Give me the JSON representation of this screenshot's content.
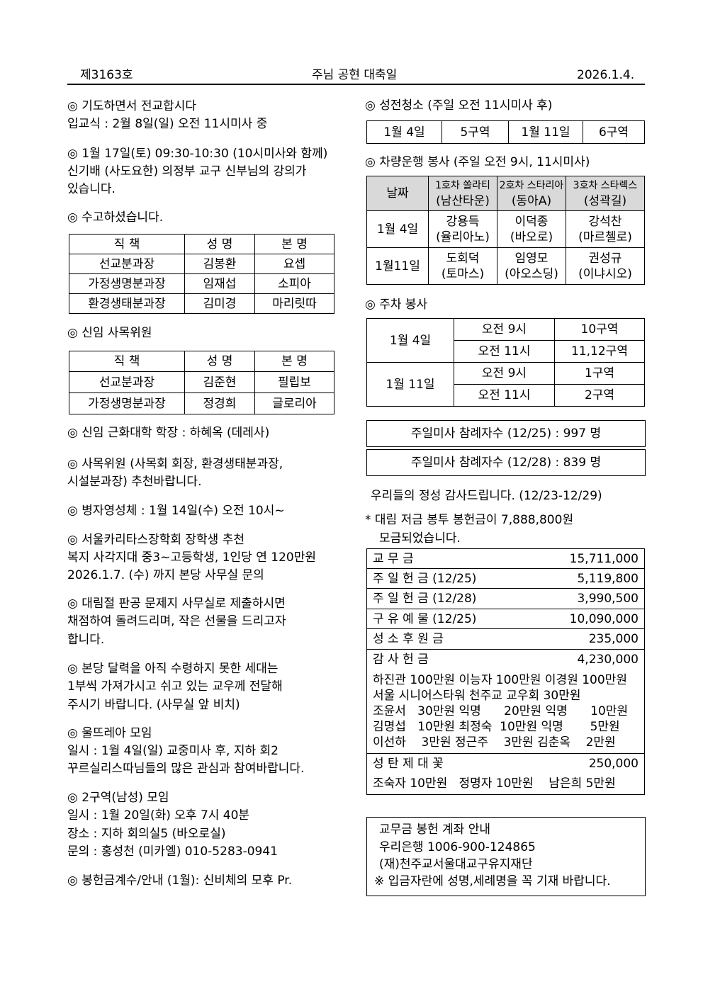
{
  "header": {
    "issue": "제3163호",
    "title": "주님 공현 대축일",
    "date": "2026.1.4."
  },
  "left": {
    "s1": {
      "title": "◎ 기도하면서 전교합시다",
      "line": "입교식 : 2월 8일(일) 오전 11시미사 중"
    },
    "s2": {
      "lines": [
        "◎ 1월 17일(토) 09:30-10:30 (10시미사와 함께)",
        "신기배 (사도요한) 의정부 교구 신부님의 강의가",
        "있습니다."
      ]
    },
    "s3": {
      "title": "◎ 수고하셨습니다.",
      "headers": [
        "직  책",
        "성  명",
        "본  명"
      ],
      "rows": [
        [
          "선교분과장",
          "김봉환",
          "요셉"
        ],
        [
          "가정생명분과장",
          "임재섭",
          "소피아"
        ],
        [
          "환경생태분과장",
          "김미경",
          "마리릿따"
        ]
      ]
    },
    "s4": {
      "title": "◎ 신임 사목위원",
      "headers": [
        "직  책",
        "성  명",
        "본  명"
      ],
      "rows": [
        [
          "선교분과장",
          "김준현",
          "필립보"
        ],
        [
          "가정생명분과장",
          "정경희",
          "글로리아"
        ]
      ]
    },
    "s5": "◎ 신임 근화대학 학장 : 하혜옥 (데레사)",
    "s6": [
      "◎ 사목위원 (사목회 회장, 환경생태분과장,",
      "시설분과장) 추천바랍니다."
    ],
    "s7": "◎ 병자영성체 : 1월 14일(수) 오전 10시~",
    "s8": [
      "◎ 서울카리타스장학회 장학생 추천",
      "복지 사각지대 중3~고등학생, 1인당 연 120만원",
      "2026.1.7. (수) 까지 본당 사무실 문의"
    ],
    "s9": [
      "◎ 대림절 판공 문제지 사무실로 제출하시면",
      "채점하여 돌려드리며, 작은 선물을 드리고자",
      "합니다."
    ],
    "s10": [
      "◎ 본당 달력을 아직 수령하지 못한 세대는",
      "1부씩 가져가시고 쉬고 있는 교우께 전달해",
      "주시기 바랍니다. (사무실 앞 비치)"
    ],
    "s11": [
      "◎ 울뜨레아 모임",
      "일시 : 1월 4일(일) 교중미사 후, 지하 회2",
      "꾸르실리스따님들의 많은 관심과 참여바랍니다."
    ],
    "s12": [
      "◎ 2구역(남성) 모임",
      "일시 : 1월 20일(화) 오후 7시 40분",
      "장소 : 지하 회의실5 (바오로실)",
      "문의 : 홍성천 (미카엘)  010-5283-0941"
    ],
    "s13": "◎ 봉헌금계수/안내 (1월): 신비체의 모후 Pr."
  },
  "right": {
    "cleaning": {
      "title": "◎ 성전청소 (주일 오전 11시미사 후)",
      "cells": [
        "1월 4일",
        "5구역",
        "1월 11일",
        "6구역"
      ]
    },
    "vehicle": {
      "title": "◎ 차량운행 봉사 (주일 오전 9시, 11시미사)",
      "date_header": "날짜",
      "cars": [
        [
          "1호차 쏠라티",
          "(남산타운)"
        ],
        [
          "2호차 스타리아",
          "(동아A)"
        ],
        [
          "3호차 스타렉스",
          "(성곽길)"
        ]
      ],
      "rows": [
        {
          "date": "1월 4일",
          "people": [
            [
              "강용득",
              "(율리아노)"
            ],
            [
              "이덕종",
              "(바오로)"
            ],
            [
              "강석찬",
              "(마르첼로)"
            ]
          ]
        },
        {
          "date": "1월11일",
          "people": [
            [
              "도회덕",
              "(토마스)"
            ],
            [
              "임영모",
              "(아오스딩)"
            ],
            [
              "권성규",
              "(이냐시오)"
            ]
          ]
        }
      ]
    },
    "parking": {
      "title": "◎ 주차 봉사",
      "rows": [
        [
          "1월 4일",
          "오전 9시",
          "10구역",
          "오전 11시",
          "11,12구역"
        ],
        [
          "1월 11일",
          "오전 9시",
          "1구역",
          "오전 11시",
          "2구역"
        ]
      ]
    },
    "attendance": [
      "주일미사 참례자수 (12/25)  :  997 명",
      "주일미사 참례자수 (12/28)  :  839 명"
    ],
    "thanks": "우리들의 정성 감사드립니다.  (12/23-12/29)",
    "advent": [
      "*  대림 저금 봉투 봉헌금이  7,888,800원",
      "모금되었습니다."
    ],
    "finance": [
      [
        "교   무   금",
        "15,711,000"
      ],
      [
        "주 일 헌 금 (12/25)",
        "5,119,800"
      ],
      [
        "주 일 헌 금 (12/28)",
        "3,990,500"
      ],
      [
        "구 유 예 물 (12/25)",
        "10,090,000"
      ],
      [
        "성 소 후 원 금",
        "235,000"
      ],
      [
        "감 사 헌 금",
        "4,230,000"
      ]
    ],
    "thanks_donors": [
      "하진관 100만원 이능자 100만원 이경원 100만원",
      "서울 시니어스타워 천주교 교우회 30만원",
      "조윤서   30만원 익명      20만원 익명      10만원",
      "김명섭   10만원 최정숙  10만원 익명       5만원",
      "이선하    3만원 정근주    3만원 김춘옥    2만원"
    ],
    "christmas": [
      "성 탄 제 대 꽃",
      "250,000"
    ],
    "christmas_donors": "조숙자 10만원   정명자 10만원    남은희 5만원",
    "account": [
      "교무금 봉헌 계좌 안내",
      "우리은행 1006-900-124865",
      "(재)천주교서울대교구유지재단",
      "※ 입금자란에 성명,세례명을 꼭 기재 바랍니다."
    ]
  }
}
